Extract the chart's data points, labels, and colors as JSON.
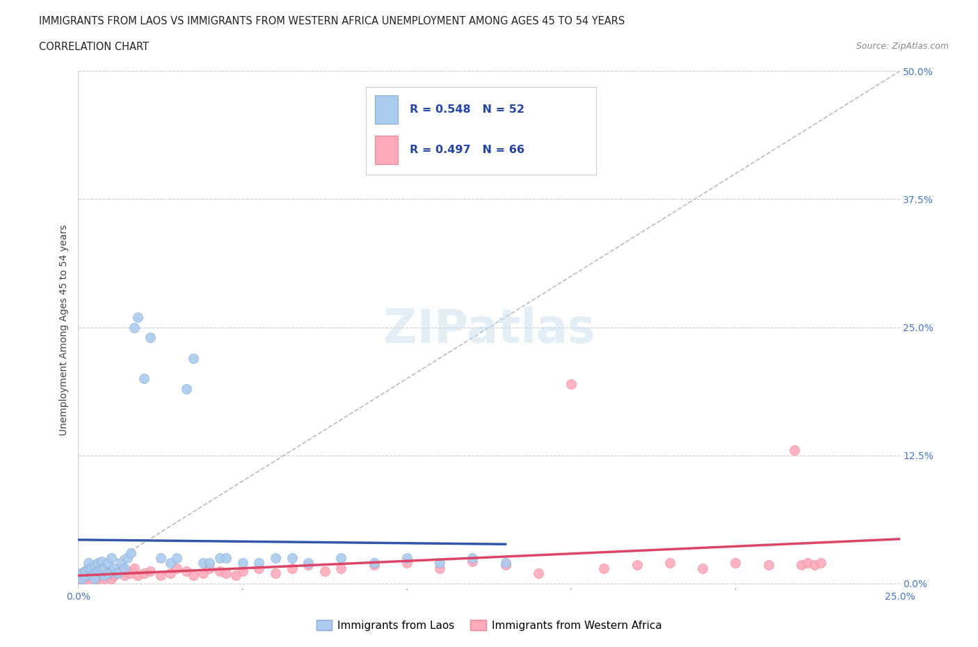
{
  "title_line1": "IMMIGRANTS FROM LAOS VS IMMIGRANTS FROM WESTERN AFRICA UNEMPLOYMENT AMONG AGES 45 TO 54 YEARS",
  "title_line2": "CORRELATION CHART",
  "source_text": "Source: ZipAtlas.com",
  "ylabel": "Unemployment Among Ages 45 to 54 years",
  "xlim": [
    0.0,
    0.25
  ],
  "ylim": [
    -0.005,
    0.5
  ],
  "ytick_labels_right": [
    "0.0%",
    "12.5%",
    "25.0%",
    "37.5%",
    "50.0%"
  ],
  "yticks": [
    0.0,
    0.125,
    0.25,
    0.375,
    0.5
  ],
  "legend_R1": "R = 0.548",
  "legend_N1": "N = 52",
  "legend_R2": "R = 0.497",
  "legend_N2": "N = 66",
  "color_laos": "#aaccee",
  "color_laos_edge": "#88aadd",
  "color_laos_line": "#3355aa",
  "color_west_africa": "#ffaabb",
  "color_west_africa_edge": "#ee8899",
  "color_west_africa_line": "#dd4466",
  "color_diag_line": "#aaaaaa",
  "watermark": "ZIPatlas",
  "laos_x": [
    0.0,
    0.001,
    0.002,
    0.002,
    0.003,
    0.003,
    0.004,
    0.004,
    0.005,
    0.005,
    0.005,
    0.006,
    0.006,
    0.007,
    0.007,
    0.007,
    0.008,
    0.008,
    0.009,
    0.009,
    0.01,
    0.01,
    0.011,
    0.012,
    0.013,
    0.014,
    0.015,
    0.016,
    0.017,
    0.018,
    0.02,
    0.022,
    0.025,
    0.028,
    0.03,
    0.033,
    0.035,
    0.038,
    0.04,
    0.043,
    0.045,
    0.05,
    0.055,
    0.06,
    0.065,
    0.07,
    0.08,
    0.09,
    0.1,
    0.11,
    0.12,
    0.13
  ],
  "laos_y": [
    0.01,
    0.005,
    0.008,
    0.012,
    0.015,
    0.02,
    0.008,
    0.015,
    0.01,
    0.005,
    0.018,
    0.012,
    0.02,
    0.015,
    0.01,
    0.022,
    0.008,
    0.015,
    0.01,
    0.02,
    0.012,
    0.025,
    0.015,
    0.01,
    0.02,
    0.015,
    0.025,
    0.03,
    0.25,
    0.26,
    0.2,
    0.24,
    0.025,
    0.02,
    0.025,
    0.19,
    0.22,
    0.02,
    0.02,
    0.025,
    0.025,
    0.02,
    0.02,
    0.025,
    0.025,
    0.02,
    0.025,
    0.02,
    0.025,
    0.02,
    0.025,
    0.02
  ],
  "wa_x": [
    0.0,
    0.001,
    0.001,
    0.002,
    0.002,
    0.003,
    0.003,
    0.004,
    0.004,
    0.005,
    0.005,
    0.006,
    0.006,
    0.007,
    0.007,
    0.008,
    0.008,
    0.009,
    0.009,
    0.01,
    0.01,
    0.011,
    0.012,
    0.013,
    0.014,
    0.015,
    0.016,
    0.017,
    0.018,
    0.02,
    0.022,
    0.025,
    0.028,
    0.03,
    0.033,
    0.035,
    0.038,
    0.04,
    0.043,
    0.045,
    0.048,
    0.05,
    0.055,
    0.06,
    0.065,
    0.07,
    0.075,
    0.08,
    0.09,
    0.1,
    0.11,
    0.12,
    0.13,
    0.14,
    0.15,
    0.16,
    0.17,
    0.18,
    0.19,
    0.2,
    0.21,
    0.218,
    0.22,
    0.222,
    0.224,
    0.226
  ],
  "wa_y": [
    0.005,
    0.008,
    0.01,
    0.005,
    0.012,
    0.008,
    0.015,
    0.005,
    0.01,
    0.008,
    0.012,
    0.005,
    0.01,
    0.008,
    0.015,
    0.005,
    0.012,
    0.008,
    0.01,
    0.005,
    0.012,
    0.008,
    0.01,
    0.015,
    0.008,
    0.012,
    0.01,
    0.015,
    0.008,
    0.01,
    0.012,
    0.008,
    0.01,
    0.015,
    0.012,
    0.008,
    0.01,
    0.015,
    0.012,
    0.01,
    0.008,
    0.012,
    0.015,
    0.01,
    0.015,
    0.018,
    0.012,
    0.015,
    0.018,
    0.02,
    0.015,
    0.022,
    0.018,
    0.01,
    0.195,
    0.015,
    0.018,
    0.02,
    0.015,
    0.02,
    0.018,
    0.13,
    0.018,
    0.02,
    0.018,
    0.02
  ]
}
